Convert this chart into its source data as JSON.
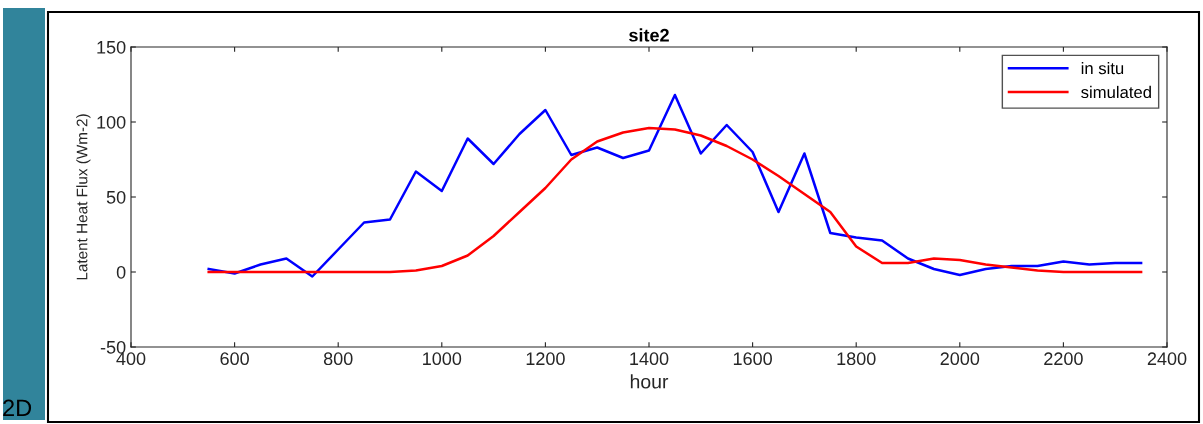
{
  "chart_data": {
    "type": "line",
    "title": "site2",
    "xlabel": "hour",
    "ylabel": "Latent Heat Flux (Wm-2)",
    "x": [
      550,
      600,
      650,
      700,
      750,
      800,
      850,
      900,
      950,
      1000,
      1050,
      1100,
      1150,
      1200,
      1250,
      1300,
      1350,
      1400,
      1450,
      1500,
      1550,
      1600,
      1650,
      1700,
      1750,
      1800,
      1850,
      1900,
      1950,
      2000,
      2050,
      2100,
      2150,
      2200,
      2250,
      2300,
      2350
    ],
    "series": [
      {
        "name": "in situ",
        "color": "#0000ff",
        "values": [
          2,
          -1,
          5,
          9,
          -3,
          15,
          33,
          35,
          67,
          54,
          89,
          72,
          92,
          108,
          78,
          83,
          76,
          81,
          118,
          79,
          98,
          80,
          40,
          79,
          26,
          23,
          21,
          9,
          2,
          -2,
          2,
          4,
          4,
          7,
          5,
          6,
          6
        ]
      },
      {
        "name": "simulated",
        "color": "#ff0000",
        "values": [
          0,
          0,
          0,
          0,
          0,
          0,
          0,
          0,
          1,
          4,
          11,
          24,
          40,
          56,
          75,
          87,
          93,
          96,
          95,
          91,
          84,
          75,
          64,
          52,
          40,
          17,
          6,
          6,
          9,
          8,
          5,
          3,
          1,
          0,
          0,
          0,
          0
        ]
      }
    ],
    "xlim": [
      400,
      2400
    ],
    "xticks": [
      400,
      600,
      800,
      1000,
      1200,
      1400,
      1600,
      1800,
      2000,
      2200,
      2400
    ],
    "ylim": [
      -50,
      150
    ],
    "yticks": [
      -50,
      0,
      50,
      100,
      150
    ],
    "grid": false,
    "legend": "top right",
    "marker": "none",
    "line_style": "solid",
    "annotations": [
      "2D"
    ]
  }
}
